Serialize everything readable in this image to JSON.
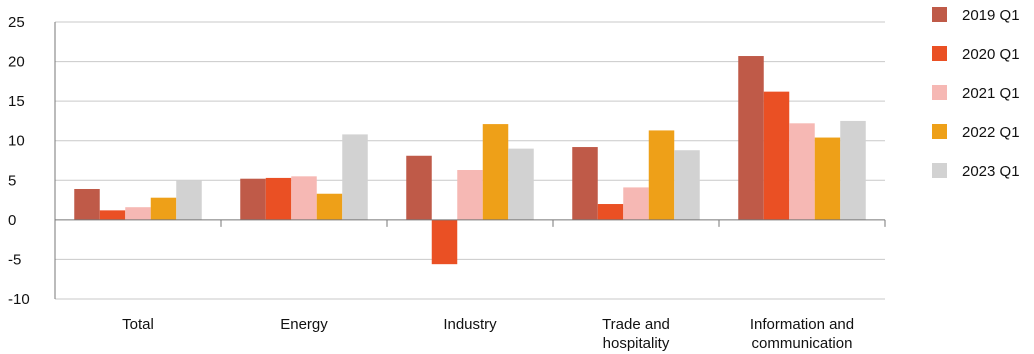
{
  "chart_data": {
    "type": "bar",
    "title": "",
    "xlabel": "",
    "ylabel": "",
    "ylim": [
      -10,
      25
    ],
    "yticks": [
      -10,
      -5,
      0,
      5,
      10,
      15,
      20,
      25
    ],
    "grid": true,
    "legend_position": "right",
    "categories": [
      [
        "Total"
      ],
      [
        "Energy"
      ],
      [
        "Industry"
      ],
      [
        "Trade and",
        "hospitality"
      ],
      [
        "Information and",
        "communication"
      ]
    ],
    "series": [
      {
        "name": "2019 Q1",
        "color": "#bf5a48",
        "values": [
          3.9,
          5.2,
          8.1,
          9.2,
          20.7
        ]
      },
      {
        "name": "2020 Q1",
        "color": "#ea5024",
        "values": [
          1.2,
          5.3,
          -5.6,
          2.0,
          16.2
        ]
      },
      {
        "name": "2021 Q1",
        "color": "#f6b8b4",
        "values": [
          1.6,
          5.5,
          6.3,
          4.1,
          12.2
        ]
      },
      {
        "name": "2022 Q1",
        "color": "#eea018",
        "values": [
          2.8,
          3.3,
          12.1,
          11.3,
          10.4
        ]
      },
      {
        "name": "2023 Q1",
        "color": "#d2d2d2",
        "values": [
          5.0,
          10.8,
          9.0,
          8.8,
          12.5
        ]
      }
    ]
  }
}
